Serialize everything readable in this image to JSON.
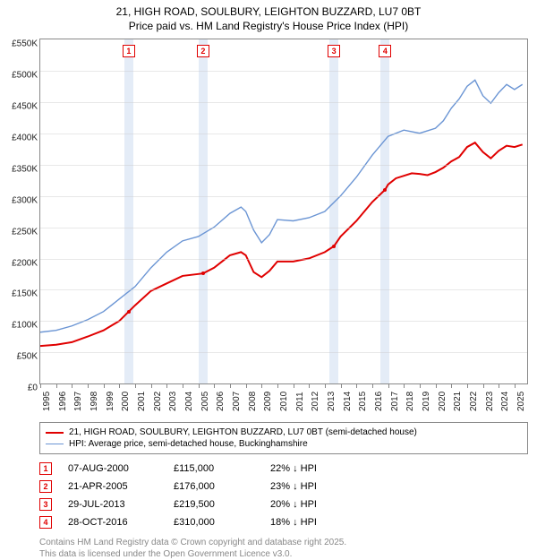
{
  "title_line1": "21, HIGH ROAD, SOULBURY, LEIGHTON BUZZARD, LU7 0BT",
  "title_line2": "Price paid vs. HM Land Registry's House Price Index (HPI)",
  "chart": {
    "type": "line",
    "background_color": "#ffffff",
    "grid_color": "#cccccc",
    "border_color": "#888888",
    "x_years": [
      "1995",
      "1996",
      "1997",
      "1998",
      "1999",
      "2000",
      "2001",
      "2002",
      "2003",
      "2004",
      "2005",
      "2006",
      "2007",
      "2008",
      "2009",
      "2010",
      "2011",
      "2012",
      "2013",
      "2014",
      "2015",
      "2016",
      "2017",
      "2018",
      "2019",
      "2020",
      "2021",
      "2022",
      "2023",
      "2024",
      "2025"
    ],
    "xmin": 1995,
    "xmax": 2025.8,
    "ylim": [
      0,
      550
    ],
    "ytick_step": 50,
    "yticks": [
      "£0",
      "£50K",
      "£100K",
      "£150K",
      "£200K",
      "£250K",
      "£300K",
      "£350K",
      "£400K",
      "£450K",
      "£500K",
      "£550K"
    ],
    "label_fontsize": 10,
    "band_color": "#dfe9f6",
    "series": [
      {
        "name": "21, HIGH ROAD, SOULBURY, LEIGHTON BUZZARD, LU7 0BT (semi-detached house)",
        "color": "#e00000",
        "line_width": 2,
        "data": [
          [
            1995.0,
            60
          ],
          [
            1996.0,
            62
          ],
          [
            1997.0,
            66
          ],
          [
            1998.0,
            75
          ],
          [
            1999.0,
            85
          ],
          [
            2000.0,
            100
          ],
          [
            2000.6,
            115
          ],
          [
            2001.0,
            125
          ],
          [
            2002.0,
            148
          ],
          [
            2003.0,
            160
          ],
          [
            2004.0,
            172
          ],
          [
            2005.0,
            175
          ],
          [
            2005.3,
            176
          ],
          [
            2006.0,
            185
          ],
          [
            2007.0,
            205
          ],
          [
            2007.7,
            210
          ],
          [
            2008.0,
            205
          ],
          [
            2008.5,
            178
          ],
          [
            2009.0,
            170
          ],
          [
            2009.5,
            180
          ],
          [
            2010.0,
            195
          ],
          [
            2011.0,
            195
          ],
          [
            2012.0,
            200
          ],
          [
            2013.0,
            210
          ],
          [
            2013.58,
            219.5
          ],
          [
            2014.0,
            235
          ],
          [
            2015.0,
            260
          ],
          [
            2016.0,
            290
          ],
          [
            2016.82,
            310
          ],
          [
            2017.0,
            318
          ],
          [
            2017.5,
            328
          ],
          [
            2018.0,
            332
          ],
          [
            2018.5,
            336
          ],
          [
            2019.0,
            335
          ],
          [
            2019.5,
            333
          ],
          [
            2020.0,
            338
          ],
          [
            2020.5,
            345
          ],
          [
            2021.0,
            355
          ],
          [
            2021.5,
            362
          ],
          [
            2022.0,
            378
          ],
          [
            2022.5,
            385
          ],
          [
            2023.0,
            370
          ],
          [
            2023.5,
            360
          ],
          [
            2024.0,
            372
          ],
          [
            2024.5,
            380
          ],
          [
            2025.0,
            378
          ],
          [
            2025.5,
            382
          ]
        ]
      },
      {
        "name": "HPI: Average price, semi-detached house, Buckinghamshire",
        "color": "#6b95d4",
        "line_width": 1.4,
        "data": [
          [
            1995.0,
            82
          ],
          [
            1996.0,
            85
          ],
          [
            1997.0,
            92
          ],
          [
            1998.0,
            102
          ],
          [
            1999.0,
            115
          ],
          [
            2000.0,
            135
          ],
          [
            2001.0,
            155
          ],
          [
            2002.0,
            185
          ],
          [
            2003.0,
            210
          ],
          [
            2004.0,
            228
          ],
          [
            2005.0,
            235
          ],
          [
            2006.0,
            250
          ],
          [
            2007.0,
            272
          ],
          [
            2007.7,
            282
          ],
          [
            2008.0,
            275
          ],
          [
            2008.5,
            245
          ],
          [
            2009.0,
            225
          ],
          [
            2009.5,
            238
          ],
          [
            2010.0,
            262
          ],
          [
            2011.0,
            260
          ],
          [
            2012.0,
            265
          ],
          [
            2013.0,
            275
          ],
          [
            2014.0,
            300
          ],
          [
            2015.0,
            330
          ],
          [
            2016.0,
            365
          ],
          [
            2017.0,
            395
          ],
          [
            2018.0,
            405
          ],
          [
            2019.0,
            400
          ],
          [
            2020.0,
            408
          ],
          [
            2020.5,
            420
          ],
          [
            2021.0,
            440
          ],
          [
            2021.5,
            455
          ],
          [
            2022.0,
            475
          ],
          [
            2022.5,
            485
          ],
          [
            2023.0,
            460
          ],
          [
            2023.5,
            448
          ],
          [
            2024.0,
            465
          ],
          [
            2024.5,
            478
          ],
          [
            2025.0,
            470
          ],
          [
            2025.5,
            478
          ]
        ]
      }
    ],
    "transactions": [
      {
        "n": "1",
        "year": 2000.6,
        "value": 115
      },
      {
        "n": "2",
        "year": 2005.3,
        "value": 176
      },
      {
        "n": "3",
        "year": 2013.58,
        "value": 219.5
      },
      {
        "n": "4",
        "year": 2016.82,
        "value": 310
      }
    ]
  },
  "legend": [
    "21, HIGH ROAD, SOULBURY, LEIGHTON BUZZARD, LU7 0BT (semi-detached house)",
    "HPI: Average price, semi-detached house, Buckinghamshire"
  ],
  "tx_table": [
    {
      "n": "1",
      "date": "07-AUG-2000",
      "price": "£115,000",
      "delta": "22% ↓ HPI"
    },
    {
      "n": "2",
      "date": "21-APR-2005",
      "price": "£176,000",
      "delta": "23% ↓ HPI"
    },
    {
      "n": "3",
      "date": "29-JUL-2013",
      "price": "£219,500",
      "delta": "20% ↓ HPI"
    },
    {
      "n": "4",
      "date": "28-OCT-2016",
      "price": "£310,000",
      "delta": "18% ↓ HPI"
    }
  ],
  "footnote_line1": "Contains HM Land Registry data © Crown copyright and database right 2025.",
  "footnote_line2": "This data is licensed under the Open Government Licence v3.0."
}
